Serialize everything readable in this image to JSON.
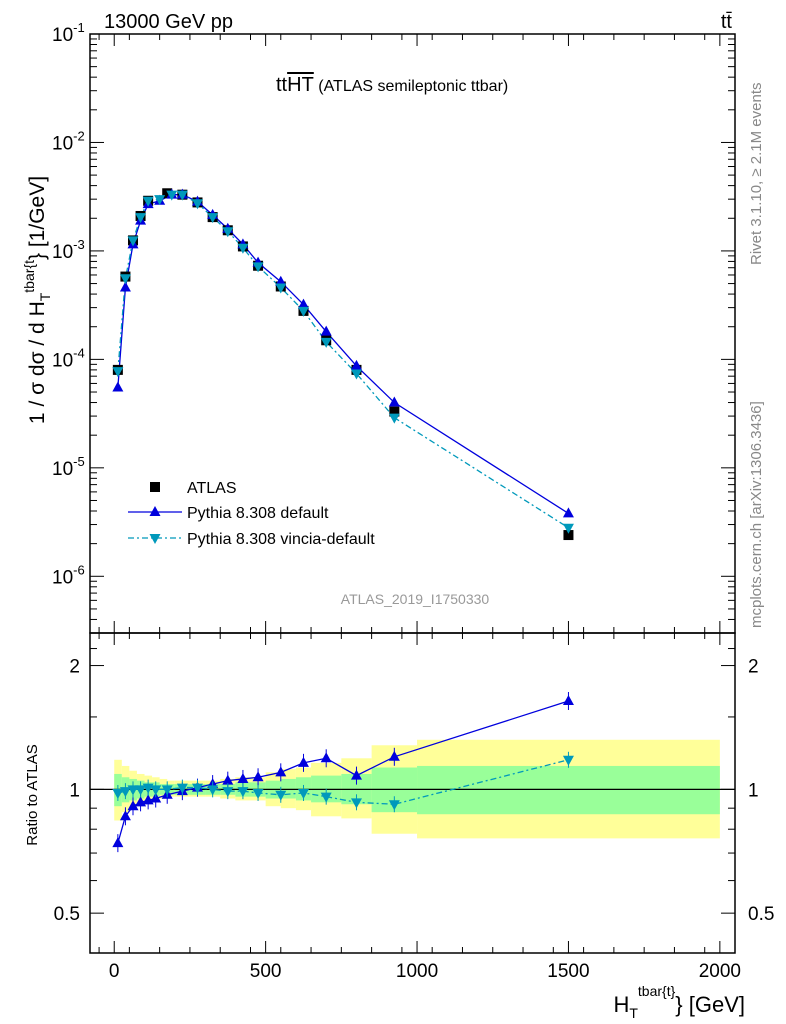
{
  "header": {
    "energy_label": "13000 GeV pp",
    "process_label": "tt̄"
  },
  "plot_title": {
    "main": "tt",
    "overline": "HT",
    "suffix": " (ATLAS semileptonic ttbar)"
  },
  "analysis_id": "ATLAS_2019_I1750330",
  "side_labels": {
    "rivet": "Rivet 3.1.10, ≥ 2.1M events",
    "mcplots": "mcplots.cern.ch [arXiv:1306.3436]"
  },
  "axes": {
    "y_label_main": "1 / σ dσ / d H",
    "y_label_sub": "T",
    "y_label_sup": "tbar{t",
    "y_label_unit": "} [1/GeV]",
    "x_label_main": "H",
    "x_label_sub": "T",
    "x_label_sup": "tbar{t}",
    "x_label_unit": "} [GeV]",
    "ratio_ylabel": "Ratio to ATLAS",
    "y_ticks": [
      "10",
      "10",
      "10",
      "10",
      "10",
      "10"
    ],
    "y_tick_exps": [
      "-6",
      "-5",
      "-4",
      "-3",
      "-2",
      "-1"
    ],
    "ratio_ticks": [
      "0.5",
      "1",
      "2"
    ],
    "x_ticks": [
      "0",
      "500",
      "1000",
      "1500",
      "2000"
    ]
  },
  "legend": {
    "atlas": "ATLAS",
    "pythia_default": "Pythia 8.308 default",
    "pythia_vincia": "Pythia 8.308 vincia-default"
  },
  "colors": {
    "data": "#000000",
    "pythia_default": "#0000dd",
    "pythia_vincia": "#0099bb",
    "band_outer": "#ffff99",
    "band_inner": "#99ff99"
  },
  "chart_data": {
    "type": "scatter",
    "x_scale": "linear",
    "y_scale_main": "log",
    "y_scale_ratio": "log",
    "xlim": [
      -80,
      2050
    ],
    "ylim_main": [
      3e-07,
      0.1
    ],
    "ylim_ratio": [
      0.4,
      2.4
    ],
    "bin_edges": [
      0,
      25,
      50,
      75,
      100,
      125,
      150,
      175,
      200,
      225,
      250,
      275,
      300,
      325,
      350,
      375,
      400,
      425,
      450,
      475,
      500,
      550,
      600,
      650,
      700,
      750,
      850,
      1000,
      2000
    ],
    "bins_plotted": [
      {
        "x": 12,
        "bin": [
          0,
          25
        ]
      },
      {
        "x": 37,
        "bin": [
          25,
          50
        ]
      },
      {
        "x": 62,
        "bin": [
          50,
          75
        ]
      },
      {
        "x": 87,
        "bin": [
          75,
          100
        ]
      },
      {
        "x": 112,
        "bin": [
          100,
          125
        ]
      },
      {
        "x": 137,
        "bin": [
          125,
          150
        ]
      },
      {
        "x": 175,
        "bin": [
          150,
          200
        ]
      },
      {
        "x": 225,
        "bin": [
          200,
          250
        ]
      },
      {
        "x": 275,
        "bin": [
          250,
          300
        ]
      },
      {
        "x": 325,
        "bin": [
          300,
          350
        ]
      },
      {
        "x": 375,
        "bin": [
          350,
          400
        ]
      },
      {
        "x": 425,
        "bin": [
          400,
          450
        ]
      },
      {
        "x": 475,
        "bin": [
          450,
          500
        ]
      },
      {
        "x": 550,
        "bin": [
          500,
          600
        ]
      },
      {
        "x": 625,
        "bin": [
          600,
          650
        ]
      },
      {
        "x": 700,
        "bin": [
          650,
          750
        ]
      },
      {
        "x": 800,
        "bin": [
          750,
          850
        ]
      },
      {
        "x": 925,
        "bin": [
          850,
          1000
        ]
      },
      {
        "x": 1500,
        "bin": [
          1000,
          2000
        ]
      }
    ],
    "series": [
      {
        "name": "ATLAS",
        "marker": "square",
        "x": [
          12,
          37,
          62,
          87,
          112,
          175,
          225,
          275,
          325,
          375,
          425,
          475,
          550,
          625,
          700,
          800,
          925,
          1500
        ],
        "y": [
          8e-05,
          0.00058,
          0.00125,
          0.0021,
          0.0029,
          0.0034,
          0.0033,
          0.0028,
          0.00205,
          0.00155,
          0.0011,
          0.00073,
          0.00047,
          0.00028,
          0.00015,
          8e-05,
          3.3e-05,
          2.4e-06
        ]
      },
      {
        "name": "Pythia 8.308 default",
        "marker": "triangle-up",
        "x": [
          12,
          37,
          62,
          87,
          112,
          150,
          190,
          225,
          275,
          325,
          375,
          425,
          475,
          550,
          625,
          700,
          800,
          925,
          1500
        ],
        "y": [
          5.5e-05,
          0.00046,
          0.00115,
          0.0019,
          0.0027,
          0.0029,
          0.0033,
          0.0033,
          0.00285,
          0.00215,
          0.0016,
          0.00115,
          0.00078,
          0.00052,
          0.00032,
          0.00018,
          8.7e-05,
          4e-05,
          3.8e-06
        ]
      },
      {
        "name": "Pythia 8.308 vincia-default",
        "marker": "triangle-down",
        "x": [
          12,
          37,
          62,
          87,
          112,
          150,
          190,
          225,
          275,
          325,
          375,
          425,
          475,
          550,
          625,
          700,
          800,
          925,
          1500
        ],
        "y": [
          7.8e-05,
          0.00056,
          0.00125,
          0.00205,
          0.0029,
          0.003,
          0.0033,
          0.0033,
          0.00275,
          0.00205,
          0.00152,
          0.00107,
          0.00072,
          0.00046,
          0.00028,
          0.000145,
          7.4e-05,
          2.9e-05,
          2.8e-06
        ]
      }
    ],
    "ratio_series": [
      {
        "name": "Pythia 8.308 default",
        "x": [
          12,
          37,
          62,
          87,
          112,
          137,
          175,
          225,
          275,
          325,
          375,
          425,
          475,
          550,
          625,
          700,
          800,
          925,
          1500
        ],
        "y": [
          0.74,
          0.86,
          0.91,
          0.93,
          0.94,
          0.95,
          0.97,
          0.99,
          1.01,
          1.03,
          1.05,
          1.06,
          1.07,
          1.1,
          1.16,
          1.19,
          1.08,
          1.2,
          1.64
        ]
      },
      {
        "name": "Pythia 8.308 vincia-default",
        "x": [
          12,
          37,
          62,
          87,
          112,
          137,
          175,
          225,
          275,
          325,
          375,
          425,
          475,
          550,
          625,
          700,
          800,
          925,
          1500
        ],
        "y": [
          0.98,
          0.99,
          1.0,
          1.0,
          1.01,
          1.0,
          1.0,
          1.01,
          1.01,
          1.0,
          0.99,
          0.99,
          0.98,
          0.97,
          0.98,
          0.96,
          0.93,
          0.92,
          1.18
        ]
      }
    ],
    "uncertainty_bands": {
      "outer": [
        [
          0.84,
          1.18
        ],
        [
          0.88,
          1.14
        ],
        [
          0.9,
          1.11
        ],
        [
          0.92,
          1.09
        ],
        [
          0.93,
          1.08
        ],
        [
          0.94,
          1.07
        ],
        [
          0.95,
          1.06
        ],
        [
          0.96,
          1.05
        ],
        [
          0.96,
          1.05
        ],
        [
          0.96,
          1.05
        ],
        [
          0.96,
          1.05
        ],
        [
          0.95,
          1.06
        ],
        [
          0.94,
          1.07
        ],
        [
          0.94,
          1.07
        ],
        [
          0.91,
          1.1
        ],
        [
          0.9,
          1.12
        ],
        [
          0.89,
          1.13
        ],
        [
          0.86,
          1.16
        ],
        [
          0.85,
          1.19
        ],
        [
          0.78,
          1.28
        ],
        [
          0.76,
          1.32
        ],
        [
          0.61,
          1.53
        ]
      ],
      "outer_edges": [
        0,
        25,
        50,
        75,
        100,
        125,
        150,
        175,
        200,
        250,
        300,
        350,
        400,
        450,
        500,
        550,
        600,
        650,
        750,
        850,
        1000,
        2000
      ],
      "inner": [
        [
          0.91,
          1.09
        ],
        [
          0.93,
          1.07
        ],
        [
          0.94,
          1.06
        ],
        [
          0.95,
          1.05
        ],
        [
          0.96,
          1.04
        ],
        [
          0.96,
          1.04
        ],
        [
          0.97,
          1.03
        ],
        [
          0.97,
          1.03
        ],
        [
          0.97,
          1.03
        ],
        [
          0.97,
          1.03
        ],
        [
          0.97,
          1.03
        ],
        [
          0.97,
          1.03
        ],
        [
          0.96,
          1.04
        ],
        [
          0.96,
          1.04
        ],
        [
          0.95,
          1.05
        ],
        [
          0.95,
          1.06
        ],
        [
          0.94,
          1.07
        ],
        [
          0.93,
          1.08
        ],
        [
          0.92,
          1.09
        ],
        [
          0.88,
          1.13
        ],
        [
          0.87,
          1.14
        ],
        [
          0.83,
          1.2
        ]
      ],
      "inner_edges": [
        0,
        25,
        50,
        75,
        100,
        125,
        150,
        175,
        200,
        250,
        300,
        350,
        400,
        450,
        500,
        550,
        600,
        650,
        750,
        850,
        1000,
        2000
      ]
    },
    "reference_line": 1
  }
}
